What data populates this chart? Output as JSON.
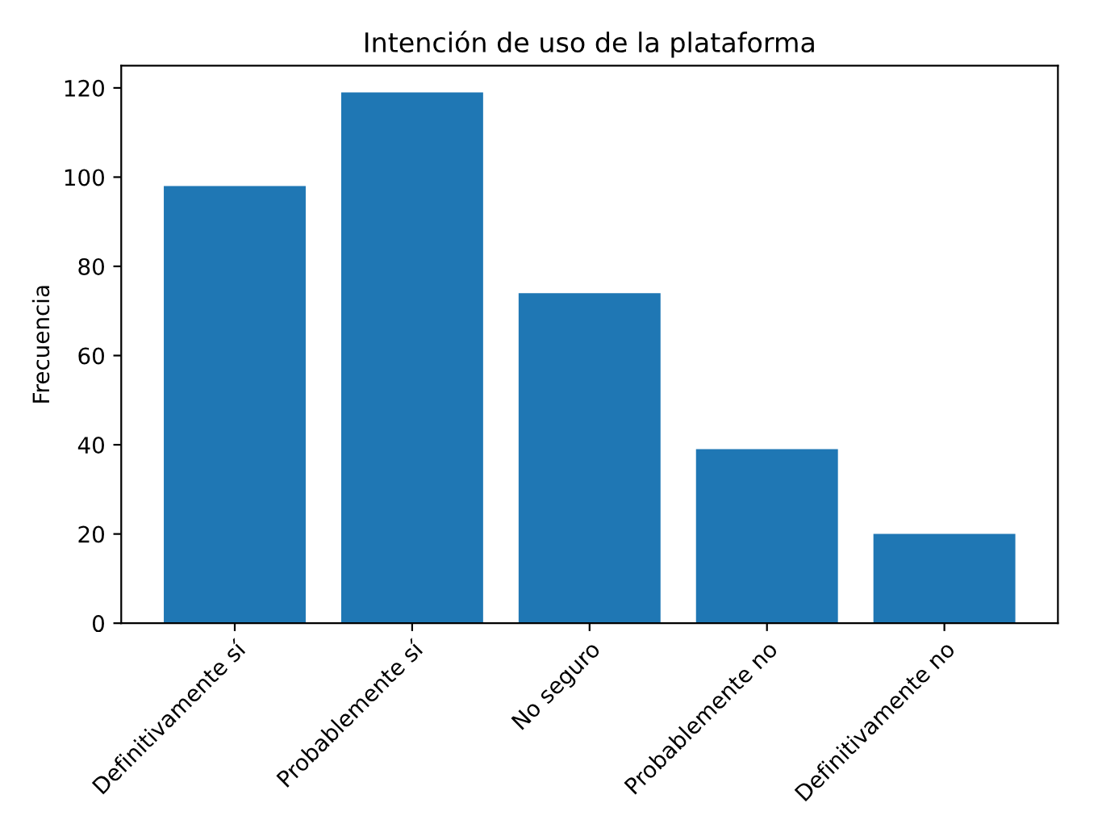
{
  "chart_data": {
    "type": "bar",
    "title": "Intención de uso de la plataforma",
    "ylabel": "Frecuencia",
    "categories": [
      "Definitivamente sí",
      "Probablemente sí",
      "No seguro",
      "Probablemente no",
      "Definitivamente no"
    ],
    "values": [
      98,
      119,
      74,
      39,
      20
    ],
    "color": "#1f77b4",
    "ylim": [
      0,
      125
    ],
    "yticks": [
      0,
      20,
      40,
      60,
      80,
      100,
      120
    ],
    "grid": false
  }
}
